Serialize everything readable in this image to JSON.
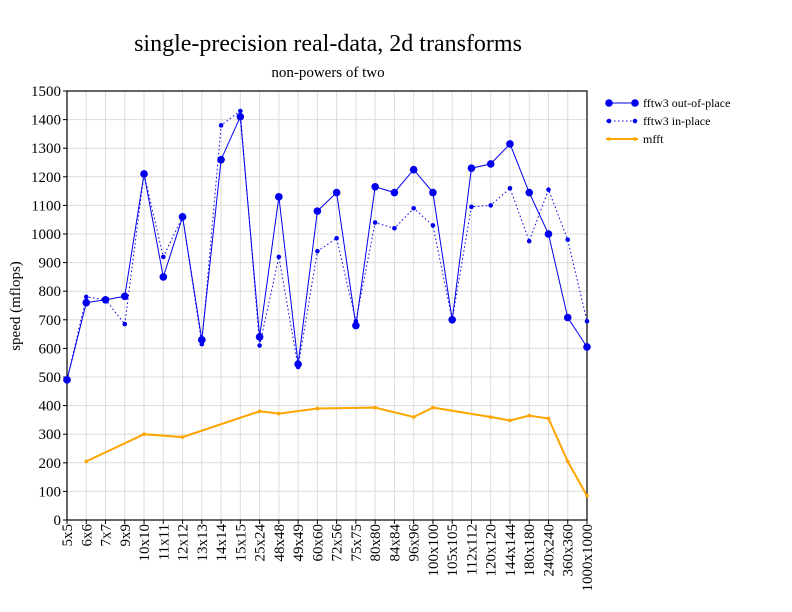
{
  "chart_data": {
    "type": "line",
    "title": "single-precision real-data, 2d transforms",
    "subtitle": "non-powers of two",
    "xlabel": "",
    "ylabel": "speed (mflops)",
    "ylim": [
      0,
      1500
    ],
    "yticks": [
      0,
      100,
      200,
      300,
      400,
      500,
      600,
      700,
      800,
      900,
      1000,
      1100,
      1200,
      1300,
      1400,
      1500
    ],
    "grid": true,
    "legend_position": "top-right, outside plot",
    "categories": [
      "5x5",
      "6x6",
      "7x7",
      "9x9",
      "10x10",
      "11x11",
      "12x12",
      "13x13",
      "14x14",
      "15x15",
      "25x24",
      "48x48",
      "49x49",
      "60x60",
      "72x56",
      "75x75",
      "80x80",
      "84x84",
      "96x96",
      "100x100",
      "105x105",
      "112x112",
      "120x120",
      "144x144",
      "180x180",
      "240x240",
      "360x360",
      "1000x1000"
    ],
    "series": [
      {
        "name": "fftw3 out-of-place",
        "color": "#0000ee",
        "style": "solid",
        "marker": "large-dot",
        "values": [
          490,
          760,
          770,
          782,
          1210,
          850,
          1060,
          630,
          1260,
          1410,
          640,
          1130,
          545,
          1080,
          1145,
          680,
          1165,
          1145,
          1225,
          1145,
          700,
          1230,
          1245,
          1315,
          1145,
          1000,
          708,
          605
        ]
      },
      {
        "name": "fftw3 in-place",
        "color": "#0000ee",
        "style": "dotted",
        "marker": "small-dot",
        "values": [
          490,
          780,
          770,
          685,
          1210,
          920,
          1060,
          615,
          1380,
          1430,
          610,
          920,
          535,
          940,
          985,
          695,
          1040,
          1020,
          1090,
          1030,
          700,
          1095,
          1100,
          1160,
          975,
          1155,
          980,
          695
        ]
      },
      {
        "name": "mfft",
        "color": "#ffa500",
        "style": "solid",
        "marker": "tiny-dot",
        "values": [
          null,
          205,
          null,
          null,
          300,
          null,
          290,
          null,
          null,
          null,
          380,
          372,
          null,
          390,
          null,
          null,
          393,
          null,
          360,
          393,
          null,
          null,
          360,
          348,
          365,
          355,
          205,
          85
        ]
      }
    ]
  }
}
